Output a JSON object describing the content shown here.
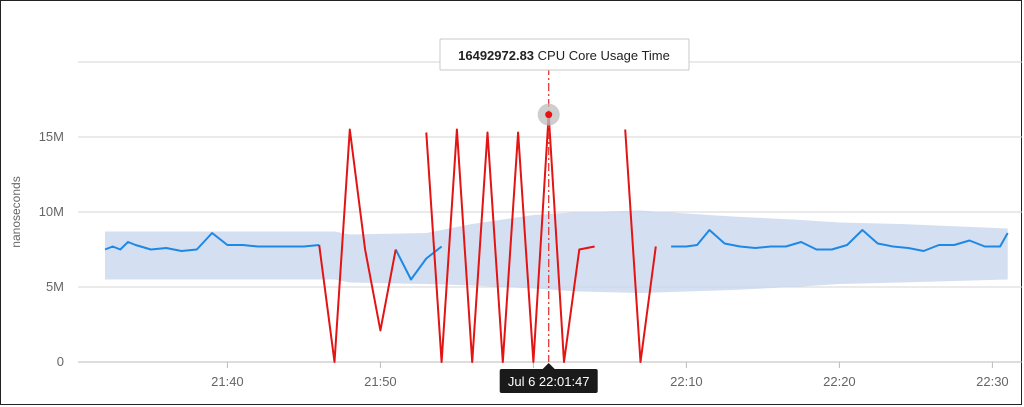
{
  "chart_data": {
    "type": "line",
    "ylabel": "nanoseconds",
    "y_ticks": [
      {
        "value": 0,
        "label": "0"
      },
      {
        "value": 5000000,
        "label": "5M"
      },
      {
        "value": 10000000,
        "label": "10M"
      },
      {
        "value": 15000000,
        "label": "15M"
      }
    ],
    "ylim": [
      0,
      20000000
    ],
    "x_unit": "minutes of day",
    "xlim": [
      1291.8,
      1351.0
    ],
    "x_ticks": [
      {
        "value": 1300,
        "label": "21:40"
      },
      {
        "value": 1310,
        "label": "21:50"
      },
      {
        "value": 1320,
        "label": "22:00"
      },
      {
        "value": 1330,
        "label": "22:10"
      },
      {
        "value": 1340,
        "label": "22:20"
      },
      {
        "value": 1350,
        "label": "22:30"
      }
    ],
    "grid": true,
    "band": {
      "x": [
        1292.0,
        1307.0,
        1308.0,
        1313.0,
        1316.0,
        1320.0,
        1323.0,
        1327.0,
        1333.0,
        1337.0,
        1340.0,
        1344.0,
        1351.0
      ],
      "upper": [
        8700000,
        8700000,
        8500000,
        8600000,
        9200000,
        9800000,
        10000000,
        10100000,
        9700000,
        9500000,
        9300000,
        9200000,
        8900000
      ],
      "lower": [
        5500000,
        5500000,
        5300000,
        5200000,
        5100000,
        4900000,
        4700000,
        4600000,
        4800000,
        5000000,
        5200000,
        5300000,
        5500000
      ]
    },
    "series": [
      {
        "color": "#1e88e5",
        "points": [
          [
            1292.0,
            7500000
          ],
          [
            1292.5,
            7700000
          ],
          [
            1293.0,
            7500000
          ],
          [
            1293.5,
            8000000
          ],
          [
            1294.0,
            7800000
          ],
          [
            1295.0,
            7500000
          ],
          [
            1296.0,
            7600000
          ],
          [
            1297.0,
            7400000
          ],
          [
            1298.0,
            7500000
          ],
          [
            1299.0,
            8600000
          ],
          [
            1300.0,
            7800000
          ],
          [
            1301.0,
            7800000
          ],
          [
            1302.0,
            7700000
          ],
          [
            1303.0,
            7700000
          ],
          [
            1304.0,
            7700000
          ],
          [
            1305.0,
            7700000
          ],
          [
            1306.0,
            7800000
          ],
          [
            1311.0,
            7500000
          ],
          [
            1312.0,
            5500000
          ],
          [
            1313.0,
            6900000
          ],
          [
            1314.0,
            7700000
          ],
          [
            1329.0,
            7700000
          ],
          [
            1330.0,
            7700000
          ],
          [
            1330.7,
            7800000
          ],
          [
            1331.5,
            8800000
          ],
          [
            1332.5,
            7900000
          ],
          [
            1333.5,
            7700000
          ],
          [
            1334.5,
            7600000
          ],
          [
            1335.5,
            7700000
          ],
          [
            1336.5,
            7700000
          ],
          [
            1337.5,
            8000000
          ],
          [
            1338.5,
            7500000
          ],
          [
            1339.5,
            7500000
          ],
          [
            1340.5,
            7800000
          ],
          [
            1341.5,
            8800000
          ],
          [
            1342.5,
            7900000
          ],
          [
            1343.5,
            7700000
          ],
          [
            1344.5,
            7600000
          ],
          [
            1345.5,
            7400000
          ],
          [
            1346.5,
            7800000
          ],
          [
            1347.5,
            7800000
          ],
          [
            1348.5,
            8100000
          ],
          [
            1349.5,
            7700000
          ],
          [
            1350.5,
            7700000
          ],
          [
            1351.0,
            8600000
          ]
        ]
      },
      {
        "color": "#e31414",
        "points": [
          [
            1306.0,
            7800000
          ],
          [
            1307.0,
            0
          ],
          [
            1308.0,
            15500000
          ],
          [
            1309.0,
            7500000
          ],
          [
            1310.0,
            2100000
          ],
          [
            1311.0,
            7500000
          ],
          [
            1313.0,
            15300000
          ],
          [
            1314.0,
            0
          ],
          [
            1315.0,
            15500000
          ],
          [
            1316.0,
            0
          ],
          [
            1317.0,
            15300000
          ],
          [
            1318.0,
            0
          ],
          [
            1319.0,
            15300000
          ],
          [
            1320.0,
            0
          ],
          [
            1321.0,
            16490000
          ],
          [
            1322.0,
            0
          ],
          [
            1323.0,
            7500000
          ],
          [
            1324.0,
            7700000
          ],
          [
            1326.0,
            15500000
          ],
          [
            1327.0,
            0
          ],
          [
            1328.0,
            7700000
          ]
        ]
      }
    ],
    "cursor": {
      "x": 1321.0,
      "y": 16492972.83,
      "value_text": "16492972.83",
      "series_text": "CPU Core Usage Time",
      "time_label": "Jul 6 22:01:47"
    }
  }
}
